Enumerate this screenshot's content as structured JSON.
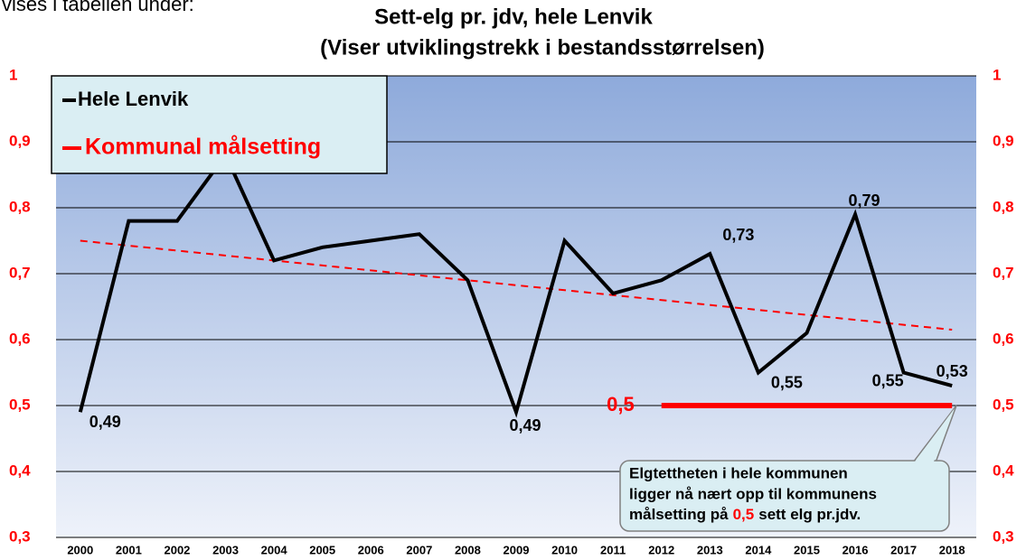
{
  "intro_text": "vises i tabellen under:",
  "chart_data": {
    "type": "line",
    "title": "Sett-elg pr. jdv, hele Lenvik",
    "subtitle": "(Viser utviklingstrekk i bestandsstørrelsen)",
    "categories": [
      "2000",
      "2001",
      "2002",
      "2003",
      "2004",
      "2005",
      "2006",
      "2007",
      "2008",
      "2009",
      "2010",
      "2011",
      "2012",
      "2013",
      "2014",
      "2015",
      "2016",
      "2017",
      "2018"
    ],
    "series": [
      {
        "name": "Hele Lenvik",
        "color": "#000000",
        "values": [
          0.49,
          0.78,
          0.78,
          0.88,
          0.72,
          0.74,
          0.75,
          0.76,
          0.69,
          0.49,
          0.75,
          0.67,
          0.69,
          0.73,
          0.55,
          0.61,
          0.79,
          0.55,
          0.53
        ],
        "value_labels": [
          "0,49",
          null,
          null,
          null,
          null,
          null,
          null,
          null,
          null,
          "0,49",
          null,
          null,
          null,
          "0,73",
          "0,55",
          null,
          "0,79",
          "0,55",
          "0,53"
        ]
      },
      {
        "name": "Kommunal målsetting",
        "color": "#ff0000",
        "values": [
          null,
          null,
          null,
          null,
          null,
          null,
          null,
          null,
          null,
          null,
          null,
          null,
          0.5,
          0.5,
          0.5,
          0.5,
          0.5,
          0.5,
          0.5
        ],
        "value_labels": [
          null,
          null,
          null,
          null,
          null,
          null,
          null,
          null,
          null,
          null,
          null,
          null,
          "0,5",
          null,
          null,
          null,
          null,
          null,
          null
        ]
      }
    ],
    "trendline": {
      "color": "#ff0000",
      "values": [
        0.75,
        0.615
      ]
    },
    "ylim": [
      0.3,
      1
    ],
    "yticks": [
      {
        "value": 0.3,
        "label": "0,3"
      },
      {
        "value": 0.4,
        "label": "0,4"
      },
      {
        "value": 0.5,
        "label": "0,5"
      },
      {
        "value": 0.6,
        "label": "0,6"
      },
      {
        "value": 0.7,
        "label": "0,7"
      },
      {
        "value": 0.8,
        "label": "0,8"
      },
      {
        "value": 0.9,
        "label": "0,9"
      },
      1
    ],
    "tick_label_color": "#ff0000",
    "grid": true,
    "legend": "top-left",
    "annotation": {
      "line1": "Elgtettheten i hele kommunen",
      "line2": "ligger nå nært opp til kommunens",
      "line3_start": "målsetting på",
      "line3_value": "0,5",
      "line3_end": "sett elg pr.jdv."
    }
  }
}
